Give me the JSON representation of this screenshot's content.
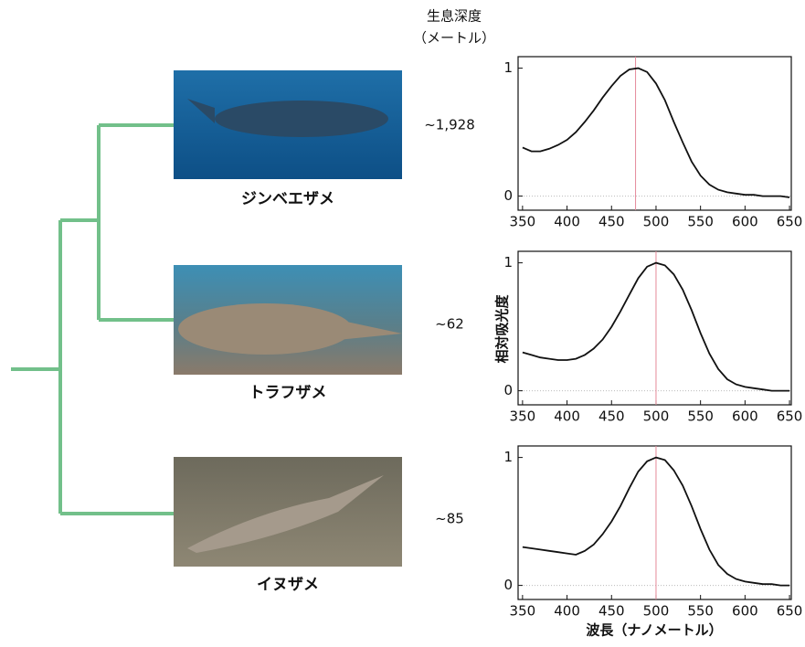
{
  "header": {
    "title": "生息深度",
    "unit": "（メートル）"
  },
  "species": [
    {
      "name": "ジンベエザメ",
      "depth": "~1,928"
    },
    {
      "name": "トラフザメ",
      "depth": "~62"
    },
    {
      "name": "イヌザメ",
      "depth": "~85"
    }
  ],
  "y_label": "相対吸光度",
  "x_label": "波長（ナノメートル）",
  "chart_data": [
    {
      "type": "line",
      "x": [
        350,
        360,
        370,
        380,
        390,
        400,
        410,
        420,
        430,
        440,
        450,
        460,
        470,
        480,
        490,
        500,
        510,
        520,
        530,
        540,
        550,
        560,
        570,
        580,
        590,
        600,
        610,
        620,
        630,
        640,
        650
      ],
      "series": [
        {
          "color": "#111111",
          "values": [
            0.38,
            0.35,
            0.35,
            0.37,
            0.4,
            0.44,
            0.5,
            0.58,
            0.67,
            0.77,
            0.86,
            0.94,
            0.99,
            1.0,
            0.97,
            0.88,
            0.75,
            0.58,
            0.42,
            0.27,
            0.16,
            0.09,
            0.05,
            0.03,
            0.02,
            0.01,
            0.01,
            0.0,
            0.0,
            0.0,
            -0.01
          ]
        }
      ],
      "marker_x": 477,
      "marker_color": "#e58a9a",
      "hline": 0,
      "xlim": [
        345,
        652
      ],
      "ylim": [
        -0.11,
        1.09
      ],
      "xticks": [
        350,
        400,
        450,
        500,
        550,
        600,
        650
      ],
      "yticks": [
        0,
        1
      ]
    },
    {
      "type": "line",
      "x": [
        350,
        360,
        370,
        380,
        390,
        400,
        410,
        420,
        430,
        440,
        450,
        460,
        470,
        480,
        490,
        500,
        510,
        520,
        530,
        540,
        550,
        560,
        570,
        580,
        590,
        600,
        610,
        620,
        630,
        640,
        650
      ],
      "series": [
        {
          "color": "#111111",
          "values": [
            0.3,
            0.28,
            0.26,
            0.25,
            0.24,
            0.24,
            0.25,
            0.28,
            0.33,
            0.4,
            0.5,
            0.62,
            0.75,
            0.88,
            0.97,
            1.0,
            0.98,
            0.91,
            0.79,
            0.63,
            0.45,
            0.29,
            0.17,
            0.09,
            0.05,
            0.03,
            0.02,
            0.01,
            0.0,
            0.0,
            0.0
          ]
        }
      ],
      "marker_x": 500,
      "marker_color": "#e58a9a",
      "hline": 0,
      "xlim": [
        345,
        652
      ],
      "ylim": [
        -0.11,
        1.09
      ],
      "xticks": [
        350,
        400,
        450,
        500,
        550,
        600,
        650
      ],
      "yticks": [
        0,
        1
      ]
    },
    {
      "type": "line",
      "x": [
        350,
        360,
        370,
        380,
        390,
        400,
        410,
        420,
        430,
        440,
        450,
        460,
        470,
        480,
        490,
        500,
        510,
        520,
        530,
        540,
        550,
        560,
        570,
        580,
        590,
        600,
        610,
        620,
        630,
        640,
        650
      ],
      "series": [
        {
          "color": "#111111",
          "values": [
            0.3,
            0.29,
            0.28,
            0.27,
            0.26,
            0.25,
            0.24,
            0.27,
            0.32,
            0.4,
            0.5,
            0.62,
            0.76,
            0.89,
            0.97,
            1.0,
            0.98,
            0.9,
            0.78,
            0.62,
            0.44,
            0.28,
            0.16,
            0.09,
            0.05,
            0.03,
            0.02,
            0.01,
            0.01,
            0.0,
            0.0
          ]
        }
      ],
      "marker_x": 500,
      "marker_color": "#e58a9a",
      "hline": 0,
      "xlim": [
        345,
        652
      ],
      "ylim": [
        -0.11,
        1.09
      ],
      "xticks": [
        350,
        400,
        450,
        500,
        550,
        600,
        650
      ],
      "yticks": [
        0,
        1
      ]
    }
  ]
}
